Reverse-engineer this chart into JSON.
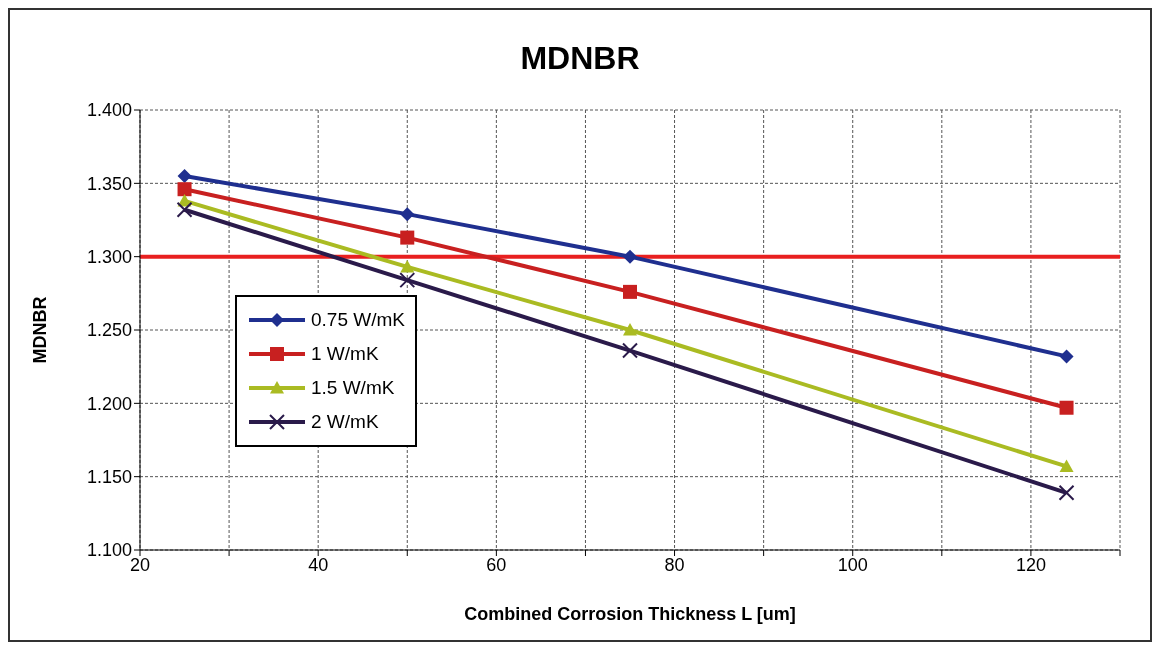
{
  "chart_data": {
    "type": "line",
    "title": "MDNBR",
    "xlabel": "Combined Corrosion Thickness L [um]",
    "ylabel": "MDNBR",
    "x": [
      25,
      50,
      75,
      124
    ],
    "series": [
      {
        "name": "0.75 W/mK",
        "color": "#1f2f8f",
        "marker": "diamond",
        "values": [
          1.355,
          1.329,
          1.3,
          1.232
        ]
      },
      {
        "name": "1 W/mK",
        "color": "#c82020",
        "marker": "square",
        "values": [
          1.346,
          1.313,
          1.276,
          1.197
        ]
      },
      {
        "name": "1.5 W/mK",
        "color": "#aabb22",
        "marker": "triangle",
        "values": [
          1.338,
          1.293,
          1.25,
          1.157
        ]
      },
      {
        "name": "2 W/mK",
        "color": "#2a1a4a",
        "marker": "cross",
        "values": [
          1.332,
          1.284,
          1.236,
          1.139
        ]
      }
    ],
    "xlim": [
      20,
      130
    ],
    "xticks": [
      20,
      {
        "value": 30,
        "label": null
      },
      40,
      {
        "value": 50,
        "label": null
      },
      60,
      {
        "value": 70,
        "label": null
      },
      80,
      {
        "value": 90,
        "label": null
      },
      100,
      {
        "value": 110,
        "label": null
      },
      120,
      {
        "value": 130,
        "label": null
      }
    ],
    "ylim": [
      1.1,
      1.4
    ],
    "yticks": [
      {
        "value": 1.1,
        "label": "1.100"
      },
      {
        "value": 1.15,
        "label": "1.150"
      },
      {
        "value": 1.2,
        "label": "1.200"
      },
      {
        "value": 1.25,
        "label": "1.250"
      },
      {
        "value": 1.3,
        "label": "1.300"
      },
      {
        "value": 1.35,
        "label": "1.350"
      },
      {
        "value": 1.4,
        "label": "1.400"
      }
    ],
    "ref_lines": [
      {
        "axis": "y",
        "value": 1.3,
        "color": "#e82020",
        "line_style": "solid"
      }
    ],
    "grid": true,
    "legend": "left",
    "line_style": "solid"
  }
}
